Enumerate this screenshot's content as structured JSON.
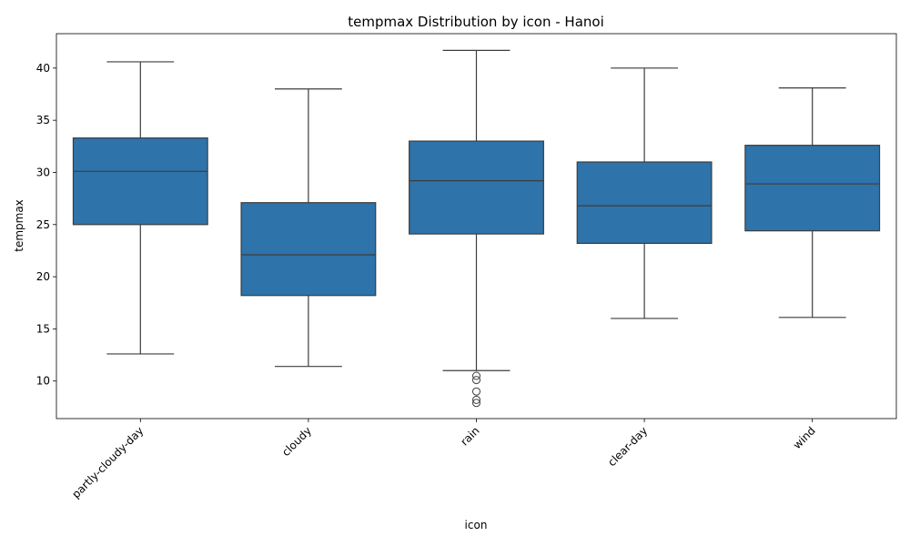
{
  "chart_data": {
    "type": "box",
    "title": "tempmax Distribution by icon - Hanoi",
    "xlabel": "icon",
    "ylabel": "tempmax",
    "ylim": [
      6.4,
      43.3
    ],
    "yticks": [
      10,
      15,
      20,
      25,
      30,
      35,
      40
    ],
    "grid": false,
    "box_color": "#2e73aa",
    "line_color": "#3d3d3d",
    "categories": [
      "partly-cloudy-day",
      "cloudy",
      "rain",
      "clear-day",
      "wind"
    ],
    "boxes": [
      {
        "category": "partly-cloudy-day",
        "whisker_low": 12.6,
        "q1": 25.0,
        "median": 30.1,
        "q3": 33.3,
        "whisker_high": 40.6,
        "outliers": []
      },
      {
        "category": "cloudy",
        "whisker_low": 11.4,
        "q1": 18.2,
        "median": 22.1,
        "q3": 27.1,
        "whisker_high": 38.0,
        "outliers": []
      },
      {
        "category": "rain",
        "whisker_low": 11.0,
        "q1": 24.1,
        "median": 29.2,
        "q3": 33.0,
        "whisker_high": 41.7,
        "outliers": [
          10.5,
          10.1,
          9.0,
          8.2,
          7.9
        ]
      },
      {
        "category": "clear-day",
        "whisker_low": 16.0,
        "q1": 23.2,
        "median": 26.8,
        "q3": 31.0,
        "whisker_high": 40.0,
        "outliers": []
      },
      {
        "category": "wind",
        "whisker_low": 16.1,
        "q1": 24.4,
        "median": 28.9,
        "q3": 32.6,
        "whisker_high": 38.1,
        "outliers": []
      }
    ]
  }
}
